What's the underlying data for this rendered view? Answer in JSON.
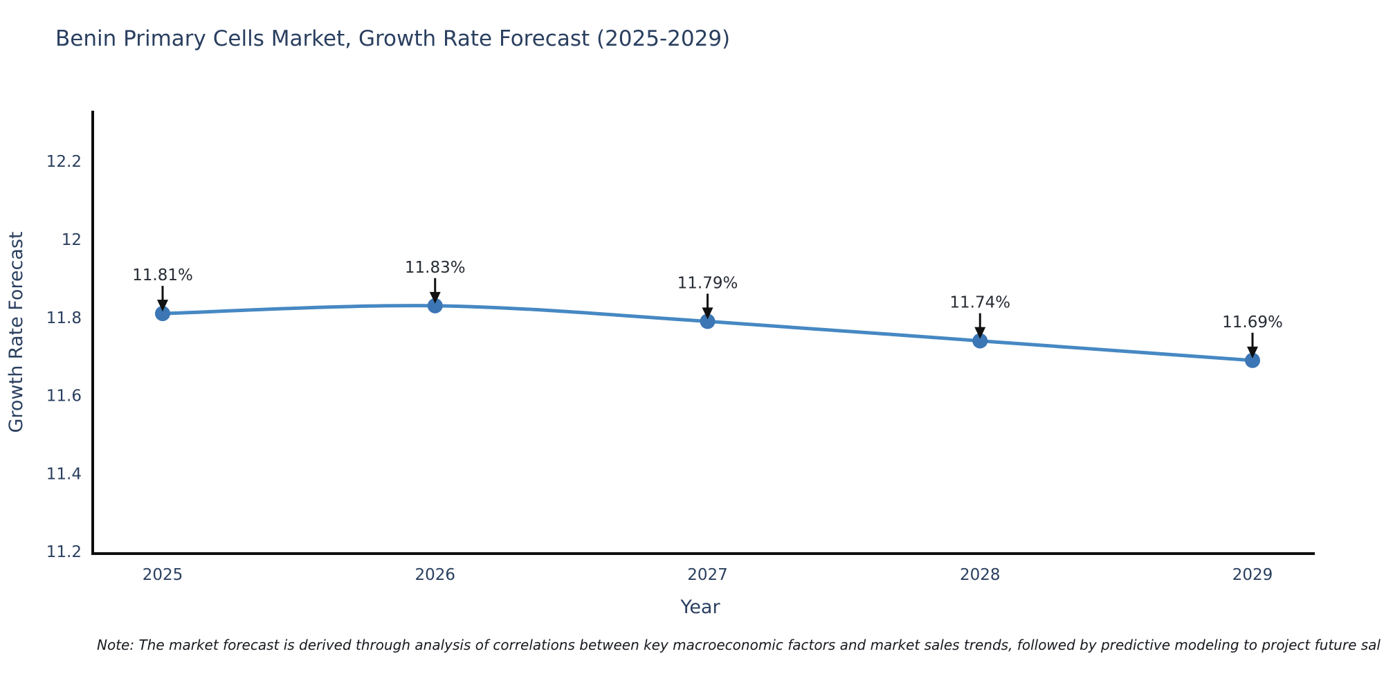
{
  "footer": {
    "note": "Note: The market forecast is derived through analysis of correlations between key macroeconomic factors and market sales trends, followed by predictive modeling to project future sal"
  },
  "chart_data": {
    "type": "line",
    "title": "Benin Primary Cells Market, Growth Rate Forecast (2025-2029)",
    "xlabel": "Year",
    "ylabel": "Growth Rate Forecast",
    "x": [
      "2025",
      "2026",
      "2027",
      "2028",
      "2029"
    ],
    "values": [
      11.81,
      11.83,
      11.79,
      11.74,
      11.69
    ],
    "point_labels": [
      "11.81%",
      "11.83%",
      "11.79%",
      "11.74%",
      "11.69%"
    ],
    "ylim": [
      11.19,
      12.33
    ],
    "yticks": [
      11.2,
      11.4,
      11.6,
      11.8,
      12,
      12.2
    ],
    "ytick_labels": [
      "11.2",
      "11.4",
      "11.6",
      "11.8",
      "12",
      "12.2"
    ],
    "line_shape": "spline",
    "grid": false,
    "legend": false,
    "colors": {
      "line": "#4688c3",
      "marker": "#3c76b5",
      "axis": "#0d0d0d",
      "tick_text": "#2a3f5f",
      "title_text": "#2a3f5f",
      "annotation": "#111111"
    }
  }
}
